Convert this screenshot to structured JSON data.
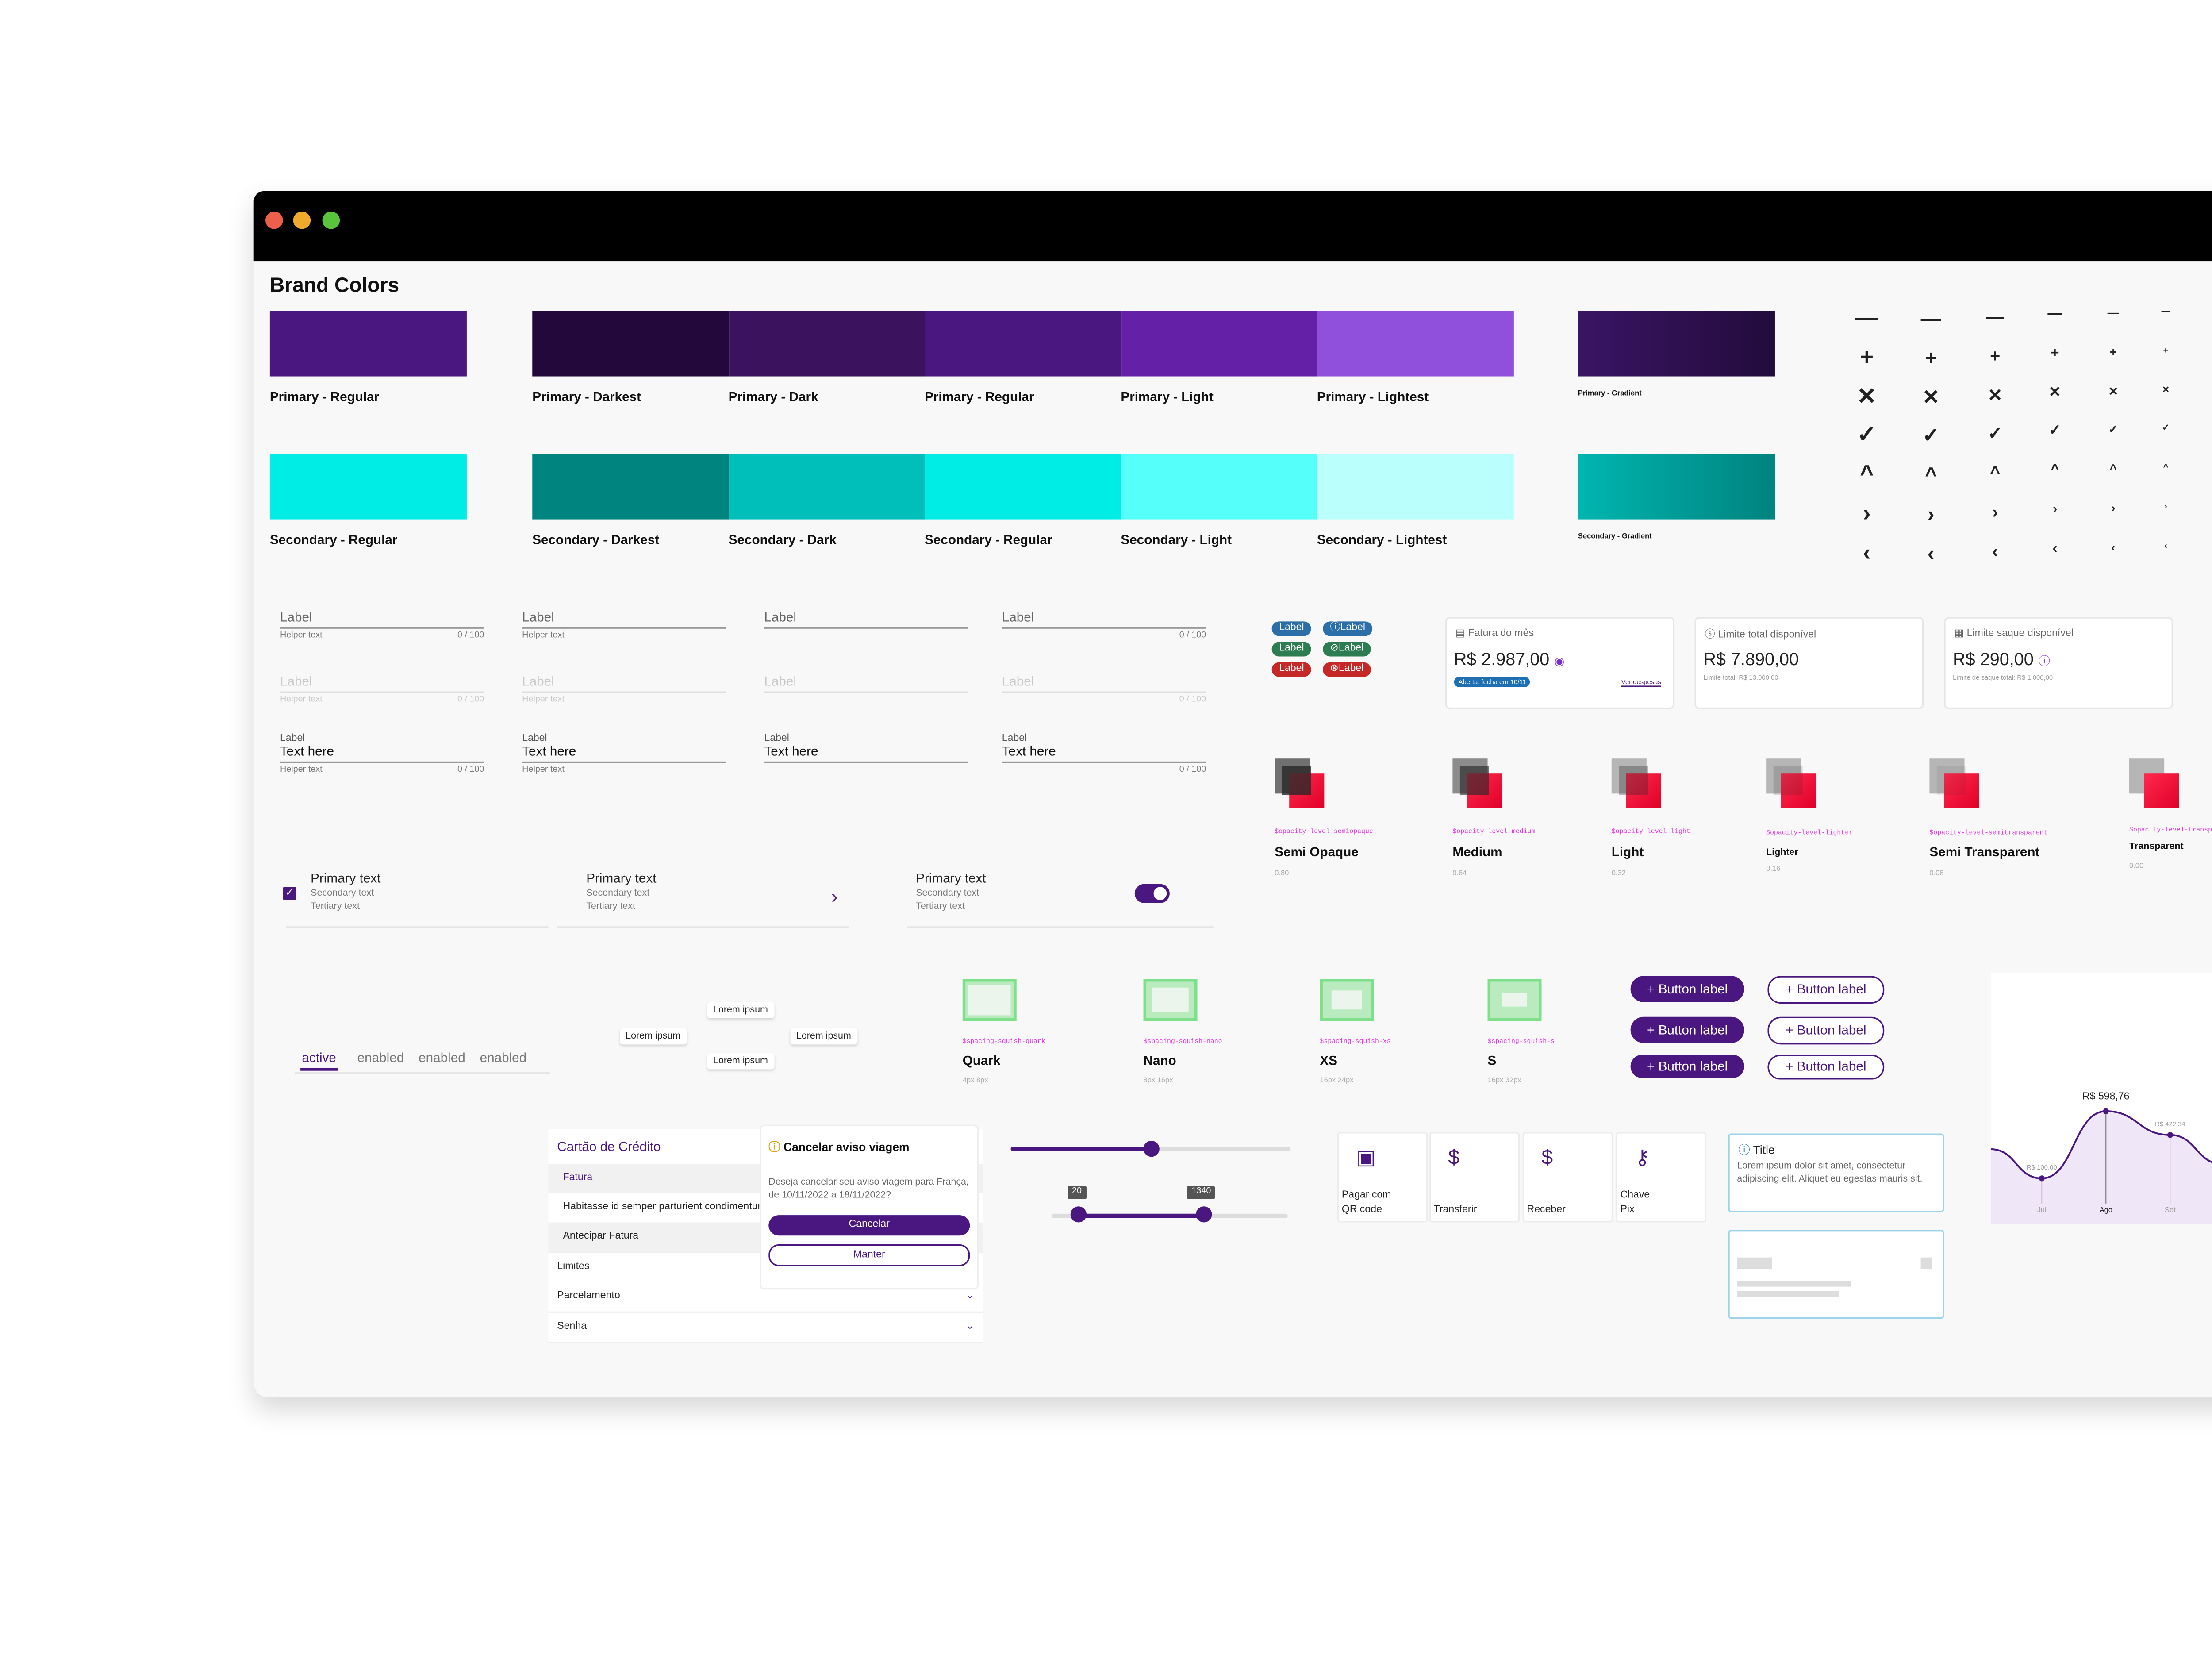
{
  "window": {
    "controls": {
      "close_color": "#ec5f4b",
      "minimize_color": "#efaa2e",
      "maximize_color": "#59c53c"
    }
  },
  "brand_colors": {
    "title": "Brand Colors",
    "primary_regular": {
      "label": "Primary - Regular",
      "color": "#4a1780"
    },
    "primary_ramp": [
      {
        "label": "Primary - Darkest",
        "color": "#23093b"
      },
      {
        "label": "Primary - Dark",
        "color": "#3a125e"
      },
      {
        "label": "Primary - Regular",
        "color": "#4a1780"
      },
      {
        "label": "Primary - Light",
        "color": "#6421a8"
      },
      {
        "label": "Primary - Lightest",
        "color": "#9050db"
      }
    ],
    "primary_gradient": {
      "label": "Primary - Gradient",
      "from": "#3a1564",
      "to": "#220b3c"
    },
    "secondary_regular": {
      "label": "Secondary - Regular",
      "color": "#00ede6"
    },
    "secondary_ramp": [
      {
        "label": "Secondary - Darkest",
        "color": "#00847f"
      },
      {
        "label": "Secondary - Dark",
        "color": "#00bfbb"
      },
      {
        "label": "Secondary - Regular",
        "color": "#00ede6"
      },
      {
        "label": "Secondary - Light",
        "color": "#55fffa"
      },
      {
        "label": "Secondary - Lightest",
        "color": "#bbfffd"
      }
    ],
    "secondary_gradient": {
      "label": "Secondary - Gradient",
      "from": "#00b5b0",
      "to": "#00837f"
    }
  },
  "icon_grid": {
    "rows": [
      "minus-icon",
      "plus-icon",
      "close-icon",
      "check-icon",
      "chevron-up-icon",
      "chevron-right-icon",
      "chevron-left-icon"
    ],
    "glyphs": [
      "—",
      "+",
      "✕",
      "✓",
      "^",
      "›",
      "‹"
    ]
  },
  "text_fields": {
    "label": "Label",
    "helper": "Helper text",
    "counter": "0 / 100",
    "value": "Text here"
  },
  "chips": {
    "label": "Label",
    "colors": {
      "info": "#2b6ea8",
      "success": "#2e7d52",
      "error": "#c62828"
    }
  },
  "balance_cards": [
    {
      "title": "Fatura do mês",
      "value": "R$ 2.987,00",
      "badge": "Aberta, fecha em 10/11",
      "link": "Ver despesas"
    },
    {
      "title": "Limite total disponível",
      "value": "R$ 7.890,00",
      "sub": "Limite total: R$ 13.000,00"
    },
    {
      "title": "Limite saque disponível",
      "value": "R$ 290,00",
      "sub": "Limite de saque total: R$ 1.000,00"
    }
  ],
  "opacity_levels": [
    {
      "token": "$opacity-level-semiopaque",
      "name": "Semi Opaque",
      "value": "0.80",
      "opacity": 0.8
    },
    {
      "token": "$opacity-level-medium",
      "name": "Medium",
      "value": "0.64",
      "opacity": 0.64
    },
    {
      "token": "$opacity-level-light",
      "name": "Light",
      "value": "0.32",
      "opacity": 0.32
    },
    {
      "token": "$opacity-level-lighter",
      "name": "Lighter",
      "value": "0.16",
      "opacity": 0.16
    },
    {
      "token": "$opacity-level-semitransparent",
      "name": "Semi Transparent",
      "value": "0.08",
      "opacity": 0.08
    },
    {
      "token": "$opacity-level-transparent",
      "name": "Transparent",
      "value": "0.00",
      "opacity": 0.0
    }
  ],
  "list_items": {
    "primary": "Primary text",
    "secondary": "Secondary text",
    "tertiary": "Tertiary text"
  },
  "tabs": [
    "active",
    "enabled",
    "enabled",
    "enabled"
  ],
  "tooltips": {
    "text": "Lorem ipsum"
  },
  "spacing": [
    {
      "token": "$spacing-squish-quark",
      "name": "Quark",
      "dims": "4px 8px"
    },
    {
      "token": "$spacing-squish-nano",
      "name": "Nano",
      "dims": "8px 16px"
    },
    {
      "token": "$spacing-squish-xs",
      "name": "XS",
      "dims": "16px 24px"
    },
    {
      "token": "$spacing-squish-s",
      "name": "S",
      "dims": "16px 32px"
    }
  ],
  "buttons": {
    "label": "+ Button label"
  },
  "chart_data": {
    "type": "area",
    "categories": [
      "Jul",
      "Ago",
      "Set"
    ],
    "values": [
      100.0,
      598.76,
      422.34
    ],
    "data_labels": [
      "R$ 100,00",
      "R$ 598,76",
      "R$ 422,34"
    ],
    "line_color": "#4a1780",
    "fill_color": "#efe6f7"
  },
  "accordion": {
    "title": "Cartão de Crédito",
    "sub_title": "Fatura",
    "body": "Habitasse id semper parturient condimentum magna",
    "rows": [
      "Antecipar Fatura",
      "Limites",
      "Parcelamento",
      "Senha"
    ]
  },
  "dialog": {
    "title": "Cancelar aviso viagem",
    "body": "Deseja cancelar seu aviso viagem para França, de 10/11/2022 a 18/11/2022?",
    "confirm": "Cancelar",
    "cancel": "Manter"
  },
  "sliders": {
    "single_value": 0.5,
    "range_low": "20",
    "range_high": "1340"
  },
  "shortcut_tiles": [
    {
      "icon": "qr-code-icon",
      "label": "Pagar com\nQR code"
    },
    {
      "icon": "transfer-money-icon",
      "label": "Transferir"
    },
    {
      "icon": "receive-money-icon",
      "label": "Receber"
    },
    {
      "icon": "key-icon",
      "label": "Chave\nPix"
    }
  ],
  "info_card": {
    "title": "Title",
    "body": "Lorem ipsum dolor sit amet, consectetur adipiscing elit. Aliquet eu egestas mauris sit."
  }
}
